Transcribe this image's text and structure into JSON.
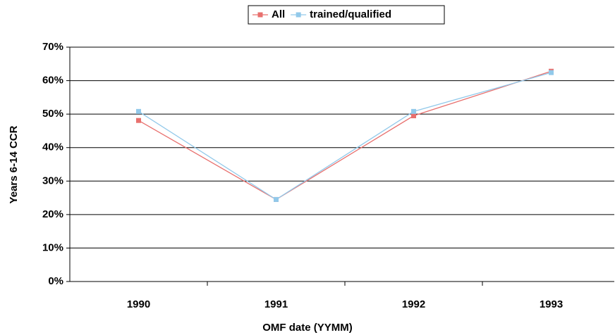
{
  "chart_data": {
    "type": "line",
    "x_label": "OMF date (YYMM)",
    "y_label": "Years 6-14 CCR",
    "categories": [
      "1990",
      "1991",
      "1992",
      "1993"
    ],
    "series": [
      {
        "name": "All",
        "color": "#e8706e",
        "values": [
          48.1,
          24.5,
          49.5,
          62.8
        ]
      },
      {
        "name": "trained/qualified",
        "color": "#92c9ea",
        "values": [
          50.8,
          24.5,
          50.8,
          62.4
        ]
      }
    ],
    "ylim": [
      0,
      70
    ],
    "yticks": [
      {
        "value": 0,
        "label": "0%"
      },
      {
        "value": 10,
        "label": "10%"
      },
      {
        "value": 20,
        "label": "20%"
      },
      {
        "value": 30,
        "label": "30%"
      },
      {
        "value": 40,
        "label": "40%"
      },
      {
        "value": 50,
        "label": "50%"
      },
      {
        "value": 60,
        "label": "60%"
      },
      {
        "value": 70,
        "label": "70%"
      }
    ],
    "grid": true,
    "legend": "top"
  }
}
